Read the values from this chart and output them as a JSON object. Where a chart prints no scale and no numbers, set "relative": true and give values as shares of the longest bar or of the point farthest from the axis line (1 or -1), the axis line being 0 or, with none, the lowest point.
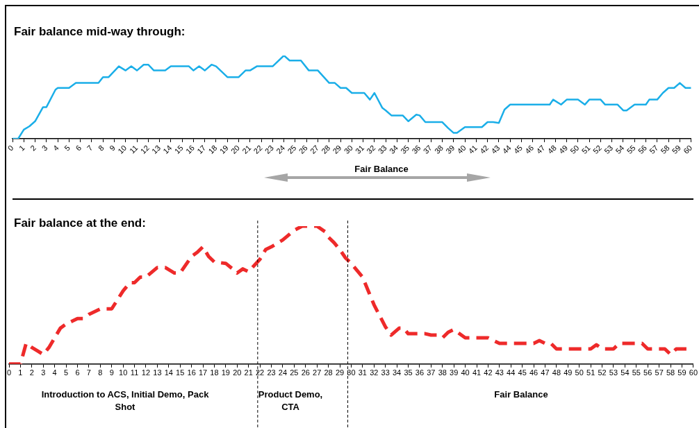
{
  "chart_data": [
    {
      "type": "line",
      "title": "Fair balance mid-way through:",
      "relative": true,
      "grid": false,
      "legend": false,
      "marker": "none",
      "line_style": "solid",
      "color": "#1aaee8",
      "x": [
        0,
        0.5,
        1,
        1.5,
        2,
        2.7,
        3,
        3.8,
        4,
        5,
        5.6,
        7.6,
        8,
        8.5,
        9.4,
        10,
        10.5,
        11,
        11.6,
        12,
        12.5,
        13.5,
        14,
        15.6,
        16,
        16.5,
        17,
        17.6,
        18,
        19,
        20,
        20.6,
        21,
        21.6,
        23,
        24,
        24.5,
        25.5,
        26.2,
        27,
        28,
        28.5,
        29,
        29.5,
        30,
        30.5,
        31.1,
        31.6,
        32,
        32.7,
        33,
        33.5,
        34.5,
        35,
        35.7,
        36,
        36.5,
        38,
        38.5,
        39,
        39.3,
        40,
        41.5,
        42,
        42.5,
        43,
        43.5,
        44,
        47.5,
        47.8,
        48.5,
        49,
        50,
        50.6,
        51,
        52,
        52.4,
        53.5,
        54,
        54.3,
        55,
        56,
        56.3,
        57,
        57.5,
        58,
        58.5,
        59,
        59.5,
        60
      ],
      "values": [
        0,
        0,
        0.11,
        0.15,
        0.21,
        0.38,
        0.38,
        0.59,
        0.61,
        0.61,
        0.67,
        0.67,
        0.74,
        0.74,
        0.87,
        0.82,
        0.87,
        0.82,
        0.89,
        0.89,
        0.82,
        0.82,
        0.87,
        0.87,
        0.82,
        0.87,
        0.82,
        0.89,
        0.87,
        0.74,
        0.74,
        0.82,
        0.82,
        0.87,
        0.87,
        1,
        0.94,
        0.94,
        0.82,
        0.82,
        0.67,
        0.67,
        0.61,
        0.61,
        0.55,
        0.55,
        0.55,
        0.47,
        0.55,
        0.37,
        0.34,
        0.28,
        0.28,
        0.21,
        0.29,
        0.28,
        0.2,
        0.2,
        0.13,
        0.07,
        0.07,
        0.14,
        0.14,
        0.2,
        0.2,
        0.19,
        0.35,
        0.41,
        0.41,
        0.47,
        0.41,
        0.47,
        0.47,
        0.41,
        0.47,
        0.47,
        0.41,
        0.41,
        0.34,
        0.34,
        0.41,
        0.41,
        0.47,
        0.47,
        0.55,
        0.61,
        0.61,
        0.67,
        0.61,
        0.61
      ],
      "xlim": [
        0,
        60
      ],
      "xticks": [
        0,
        1,
        2,
        3,
        4,
        5,
        6,
        7,
        8,
        9,
        10,
        11,
        12,
        13,
        14,
        15,
        16,
        17,
        18,
        19,
        20,
        21,
        22,
        23,
        24,
        25,
        26,
        27,
        28,
        29,
        30,
        31,
        32,
        33,
        34,
        35,
        36,
        37,
        38,
        39,
        40,
        41,
        42,
        43,
        44,
        45,
        46,
        47,
        48,
        49,
        50,
        51,
        52,
        53,
        54,
        55,
        56,
        57,
        58,
        59,
        60
      ],
      "annotations": [
        "Fair Balance"
      ]
    },
    {
      "type": "line",
      "title": "Fair balance at the end:",
      "relative": true,
      "grid": false,
      "legend": false,
      "marker": "none",
      "line_style": "dashed",
      "color": "#ee2a2a",
      "x": [
        0,
        1,
        1.5,
        2,
        3,
        3.5,
        4.5,
        5,
        6,
        6.5,
        7,
        8,
        9,
        10,
        10.6,
        11,
        11.5,
        12,
        13,
        13.7,
        14.5,
        15,
        16,
        16.5,
        17,
        17.5,
        18,
        19,
        19.6,
        20,
        20.5,
        21,
        22,
        22.5,
        23,
        24,
        25,
        25.7,
        27,
        27.7,
        28,
        28.5,
        29,
        29.5,
        30,
        30.5,
        31,
        31.5,
        32,
        32.5,
        33,
        33.5,
        34.2,
        34.6,
        35,
        36.5,
        37,
        37.5,
        38,
        38.5,
        39,
        40,
        42,
        43,
        46,
        46.5,
        47,
        47.5,
        48,
        51,
        51.5,
        52,
        53,
        53.5,
        55.5,
        56,
        57.5,
        58,
        58.5,
        60
      ],
      "values": [
        0,
        0,
        0.15,
        0.12,
        0.07,
        0.12,
        0.26,
        0.29,
        0.33,
        0.33,
        0.36,
        0.4,
        0.4,
        0.53,
        0.59,
        0.59,
        0.63,
        0.63,
        0.7,
        0.7,
        0.66,
        0.66,
        0.78,
        0.81,
        0.85,
        0.78,
        0.74,
        0.73,
        0.69,
        0.66,
        0.69,
        0.67,
        0.76,
        0.83,
        0.85,
        0.9,
        0.97,
        1,
        1,
        0.96,
        0.92,
        0.88,
        0.83,
        0.77,
        0.73,
        0.68,
        0.63,
        0.53,
        0.43,
        0.35,
        0.27,
        0.21,
        0.26,
        0.26,
        0.22,
        0.22,
        0.21,
        0.21,
        0.19,
        0.23,
        0.25,
        0.19,
        0.19,
        0.15,
        0.15,
        0.17,
        0.15,
        0.15,
        0.11,
        0.11,
        0.14,
        0.11,
        0.11,
        0.15,
        0.15,
        0.11,
        0.11,
        0.07,
        0.11,
        0.11
      ],
      "xlim": [
        0,
        60
      ],
      "xticks": [
        0,
        1,
        2,
        3,
        4,
        5,
        6,
        7,
        8,
        9,
        10,
        11,
        12,
        13,
        14,
        15,
        16,
        17,
        18,
        19,
        20,
        21,
        22,
        23,
        24,
        25,
        26,
        27,
        28,
        29,
        30,
        31,
        32,
        33,
        34,
        35,
        36,
        37,
        38,
        39,
        40,
        41,
        42,
        43,
        44,
        45,
        46,
        47,
        48,
        49,
        50,
        51,
        52,
        53,
        54,
        55,
        56,
        57,
        58,
        59,
        60
      ],
      "ref_lines": [
        {
          "axis": "x",
          "value": 21.8,
          "line_style": "dashed",
          "color": "#000000"
        },
        {
          "axis": "x",
          "value": 29.7,
          "line_style": "dashed",
          "color": "#000000"
        }
      ],
      "annotations": [
        "Introduction to ACS, Initial Demo, Pack Shot",
        "Product Demo, CTA",
        "Fair Balance"
      ]
    }
  ]
}
